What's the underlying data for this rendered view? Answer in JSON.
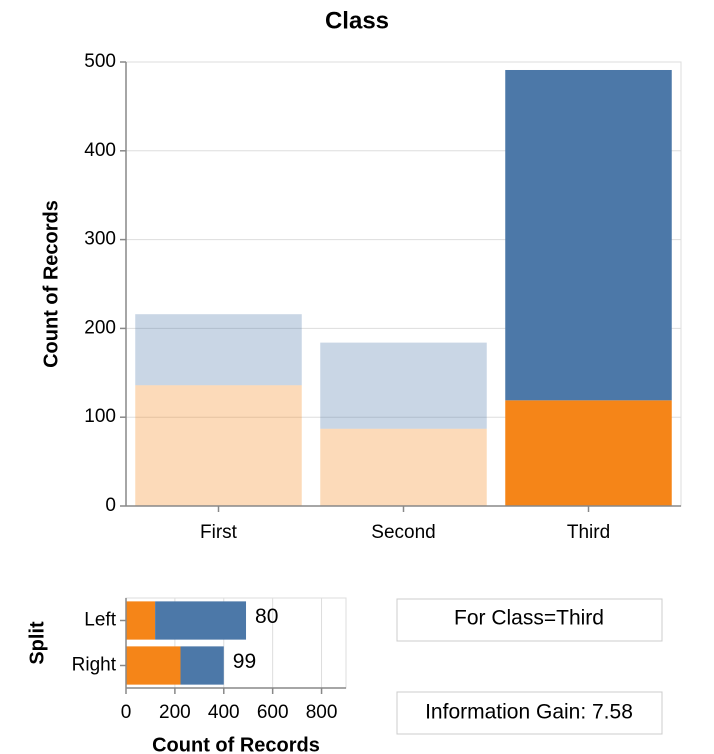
{
  "chart_data": [
    {
      "type": "bar",
      "stacked": true,
      "orientation": "vertical",
      "title": "Class",
      "y_label": "Count of Records",
      "categories": [
        "First",
        "Second",
        "Third"
      ],
      "series": [
        {
          "color": "#f58518",
          "values": [
            136,
            87,
            119
          ]
        },
        {
          "color": "#4c78a8",
          "values": [
            80,
            97,
            372
          ]
        }
      ],
      "highlight": "Third",
      "faded_opacity": 0.3,
      "ylim": [
        0,
        500
      ],
      "yticks": [
        0,
        100,
        200,
        300,
        400,
        500
      ],
      "grid": true
    },
    {
      "type": "bar",
      "stacked": true,
      "orientation": "horizontal",
      "y_label": "Split",
      "x_label": "Count of Records",
      "categories": [
        "Left",
        "Right"
      ],
      "series": [
        {
          "color": "#f58518",
          "values": [
            119,
            223
          ]
        },
        {
          "color": "#4c78a8",
          "values": [
            372,
            177
          ]
        }
      ],
      "end_labels": [
        "80",
        "99"
      ],
      "xlim": [
        0,
        900
      ],
      "xticks": [
        0,
        200,
        400,
        600,
        800
      ],
      "grid": true
    }
  ],
  "info": {
    "selection": "For Class=Third",
    "gain": "Information Gain: 7.58"
  }
}
